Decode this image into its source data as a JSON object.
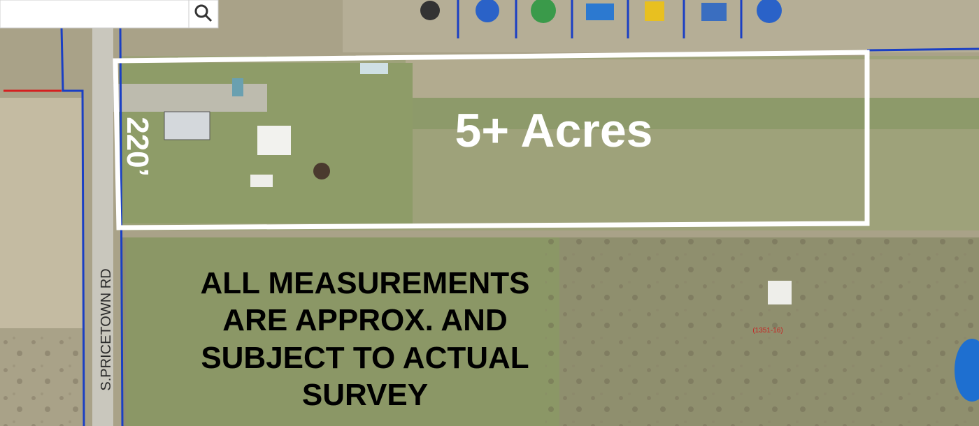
{
  "map": {
    "acreage_label": "5+ Acres",
    "frontage_label": "220’",
    "road_label": "S.PRICETOWN RD",
    "parcel_label": "(1351-16)",
    "disclaimer": [
      "ALL MEASUREMENTS",
      "ARE APPROX. AND",
      "SUBJECT TO ACTUAL",
      "SURVEY"
    ]
  }
}
